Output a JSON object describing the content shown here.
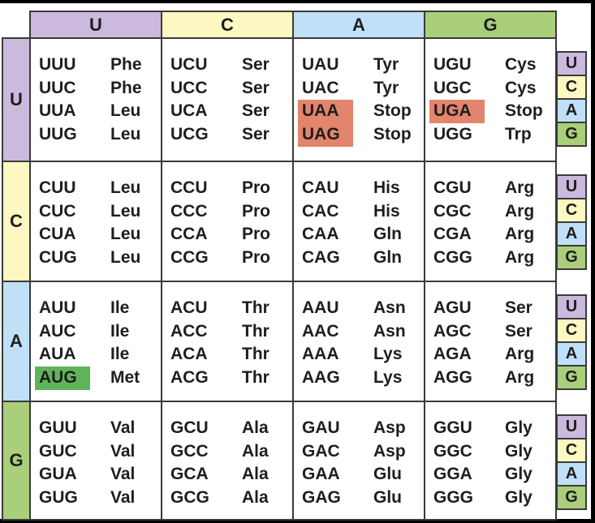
{
  "colors": {
    "U": "#cbbade",
    "C": "#fdf8c2",
    "A": "#bfe0f6",
    "G": "#aacf7b",
    "stop_highlight": "#e3846c",
    "start_highlight": "#5fb45a"
  },
  "second_position": [
    "U",
    "C",
    "A",
    "G"
  ],
  "first_position": [
    "U",
    "C",
    "A",
    "G"
  ],
  "third_position": [
    "U",
    "C",
    "A",
    "G"
  ],
  "blocks": [
    [
      [
        {
          "codon": "UUU",
          "aa": "Phe"
        },
        {
          "codon": "UUC",
          "aa": "Phe"
        },
        {
          "codon": "UUA",
          "aa": "Leu"
        },
        {
          "codon": "UUG",
          "aa": "Leu"
        }
      ],
      [
        {
          "codon": "UCU",
          "aa": "Ser"
        },
        {
          "codon": "UCC",
          "aa": "Ser"
        },
        {
          "codon": "UCA",
          "aa": "Ser"
        },
        {
          "codon": "UCG",
          "aa": "Ser"
        }
      ],
      [
        {
          "codon": "UAU",
          "aa": "Tyr"
        },
        {
          "codon": "UAC",
          "aa": "Tyr"
        },
        {
          "codon": "UAA",
          "aa": "Stop",
          "highlight": "stop"
        },
        {
          "codon": "UAG",
          "aa": "Stop",
          "highlight": "stop"
        }
      ],
      [
        {
          "codon": "UGU",
          "aa": "Cys"
        },
        {
          "codon": "UGC",
          "aa": "Cys"
        },
        {
          "codon": "UGA",
          "aa": "Stop",
          "highlight": "stop"
        },
        {
          "codon": "UGG",
          "aa": "Trp"
        }
      ]
    ],
    [
      [
        {
          "codon": "CUU",
          "aa": "Leu"
        },
        {
          "codon": "CUC",
          "aa": "Leu"
        },
        {
          "codon": "CUA",
          "aa": "Leu"
        },
        {
          "codon": "CUG",
          "aa": "Leu"
        }
      ],
      [
        {
          "codon": "CCU",
          "aa": "Pro"
        },
        {
          "codon": "CCC",
          "aa": "Pro"
        },
        {
          "codon": "CCA",
          "aa": "Pro"
        },
        {
          "codon": "CCG",
          "aa": "Pro"
        }
      ],
      [
        {
          "codon": "CAU",
          "aa": "His"
        },
        {
          "codon": "CAC",
          "aa": "His"
        },
        {
          "codon": "CAA",
          "aa": "Gln"
        },
        {
          "codon": "CAG",
          "aa": "Gln"
        }
      ],
      [
        {
          "codon": "CGU",
          "aa": "Arg"
        },
        {
          "codon": "CGC",
          "aa": "Arg"
        },
        {
          "codon": "CGA",
          "aa": "Arg"
        },
        {
          "codon": "CGG",
          "aa": "Arg"
        }
      ]
    ],
    [
      [
        {
          "codon": "AUU",
          "aa": "Ile"
        },
        {
          "codon": "AUC",
          "aa": "Ile"
        },
        {
          "codon": "AUA",
          "aa": "Ile"
        },
        {
          "codon": "AUG",
          "aa": "Met",
          "highlight": "start"
        }
      ],
      [
        {
          "codon": "ACU",
          "aa": "Thr"
        },
        {
          "codon": "ACC",
          "aa": "Thr"
        },
        {
          "codon": "ACA",
          "aa": "Thr"
        },
        {
          "codon": "ACG",
          "aa": "Thr"
        }
      ],
      [
        {
          "codon": "AAU",
          "aa": "Asn"
        },
        {
          "codon": "AAC",
          "aa": "Asn"
        },
        {
          "codon": "AAA",
          "aa": "Lys"
        },
        {
          "codon": "AAG",
          "aa": "Lys"
        }
      ],
      [
        {
          "codon": "AGU",
          "aa": "Ser"
        },
        {
          "codon": "AGC",
          "aa": "Ser"
        },
        {
          "codon": "AGA",
          "aa": "Arg"
        },
        {
          "codon": "AGG",
          "aa": "Arg"
        }
      ]
    ],
    [
      [
        {
          "codon": "GUU",
          "aa": "Val"
        },
        {
          "codon": "GUC",
          "aa": "Val"
        },
        {
          "codon": "GUA",
          "aa": "Val"
        },
        {
          "codon": "GUG",
          "aa": "Val"
        }
      ],
      [
        {
          "codon": "GCU",
          "aa": "Ala"
        },
        {
          "codon": "GCC",
          "aa": "Ala"
        },
        {
          "codon": "GCA",
          "aa": "Ala"
        },
        {
          "codon": "GCG",
          "aa": "Ala"
        }
      ],
      [
        {
          "codon": "GAU",
          "aa": "Asp"
        },
        {
          "codon": "GAC",
          "aa": "Asp"
        },
        {
          "codon": "GAA",
          "aa": "Glu"
        },
        {
          "codon": "GAG",
          "aa": "Glu"
        }
      ],
      [
        {
          "codon": "GGU",
          "aa": "Gly"
        },
        {
          "codon": "GGC",
          "aa": "Gly"
        },
        {
          "codon": "GGA",
          "aa": "Gly"
        },
        {
          "codon": "GGG",
          "aa": "Gly"
        }
      ]
    ]
  ]
}
